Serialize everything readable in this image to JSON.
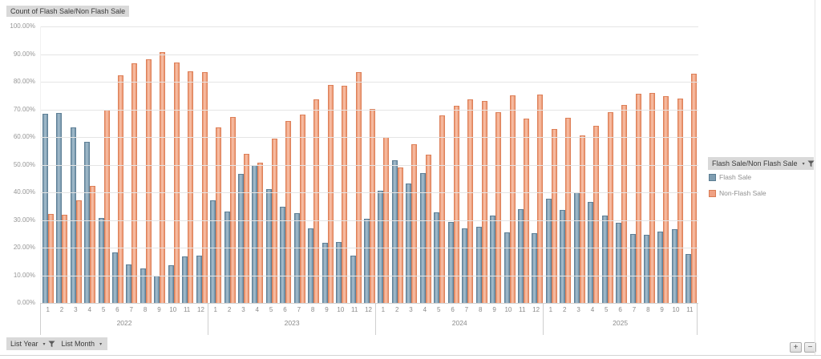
{
  "title": "Count of Flash Sale/Non Flash Sale",
  "legend": {
    "header": "Flash Sale/Non Flash Sale",
    "items": [
      {
        "name": "flash-sale",
        "label": "Flash Sale",
        "fill": "#7f9db1",
        "border": "#5a7d92"
      },
      {
        "name": "non-flash-sale",
        "label": "Non-Flash Sale",
        "fill": "#f0a183",
        "border": "#d97c55"
      }
    ]
  },
  "field_buttons": {
    "year_label": "List Year",
    "month_label": "List Month"
  },
  "expand_buttons": {
    "plus": "+",
    "minus": "−"
  },
  "colors": {
    "flash_fill": "#7f9db1",
    "flash_border": "#5f8096",
    "non_flash_fill": "#f0a183",
    "non_flash_border": "#dd8059",
    "gridline": "#e5e5e5",
    "axis_text": "#8a8a8a",
    "chip_bg": "#d9d9d9"
  },
  "chart_data": {
    "type": "bar",
    "title": "Count of Flash Sale/Non Flash Sale",
    "ylabel": "",
    "ylim": [
      0,
      100
    ],
    "grid": true,
    "legend_position": "right",
    "y_tick_labels": [
      "100.00%",
      "90.00%",
      "80.00%",
      "70.00%",
      "60.00%",
      "50.00%",
      "40.00%",
      "30.00%",
      "20.00%",
      "10.00%",
      "0.00%"
    ],
    "series_names": [
      "Flash Sale",
      "Non-Flash Sale"
    ],
    "groups": [
      {
        "year": "2022",
        "month_labels": [
          "1",
          "2",
          "3",
          "4",
          "5",
          "6",
          "7",
          "8",
          "9",
          "10",
          "11",
          "12"
        ],
        "flash_sale": [
          68.0,
          68.5,
          63.2,
          58.1,
          30.4,
          18.0,
          13.5,
          12.3,
          9.7,
          13.4,
          16.5,
          16.8
        ],
        "non_flash_sale": [
          32.0,
          31.5,
          36.8,
          41.9,
          69.6,
          82.0,
          86.5,
          87.7,
          90.3,
          86.6,
          83.5,
          83.2
        ]
      },
      {
        "year": "2023",
        "month_labels": [
          "1",
          "2",
          "3",
          "4",
          "5",
          "6",
          "7",
          "8",
          "9",
          "10",
          "11",
          "12"
        ],
        "flash_sale": [
          36.8,
          32.9,
          46.4,
          49.6,
          40.9,
          34.5,
          32.3,
          26.6,
          21.5,
          21.7,
          16.7,
          30.1
        ],
        "non_flash_sale": [
          63.2,
          67.1,
          53.6,
          50.4,
          59.1,
          65.5,
          67.7,
          73.4,
          78.5,
          78.3,
          83.3,
          69.9
        ]
      },
      {
        "year": "2024",
        "month_labels": [
          "1",
          "2",
          "3",
          "4",
          "5",
          "6",
          "7",
          "8",
          "9",
          "10",
          "11",
          "12"
        ],
        "flash_sale": [
          40.4,
          51.2,
          43.0,
          46.6,
          32.6,
          29.1,
          26.7,
          27.2,
          31.3,
          25.2,
          33.7,
          24.9
        ],
        "non_flash_sale": [
          59.6,
          48.8,
          57.0,
          53.4,
          67.4,
          70.9,
          73.3,
          72.8,
          68.7,
          74.8,
          66.3,
          75.1
        ]
      },
      {
        "year": "2025",
        "month_labels": [
          "1",
          "2",
          "3",
          "4",
          "5",
          "6",
          "7",
          "8",
          "9",
          "10",
          "11"
        ],
        "flash_sale": [
          37.3,
          33.4,
          39.7,
          36.3,
          31.3,
          28.6,
          24.5,
          24.3,
          25.4,
          26.4,
          17.3
        ],
        "non_flash_sale": [
          62.7,
          66.6,
          60.3,
          63.7,
          68.7,
          71.4,
          75.5,
          75.7,
          74.6,
          73.6,
          82.7
        ]
      }
    ]
  }
}
